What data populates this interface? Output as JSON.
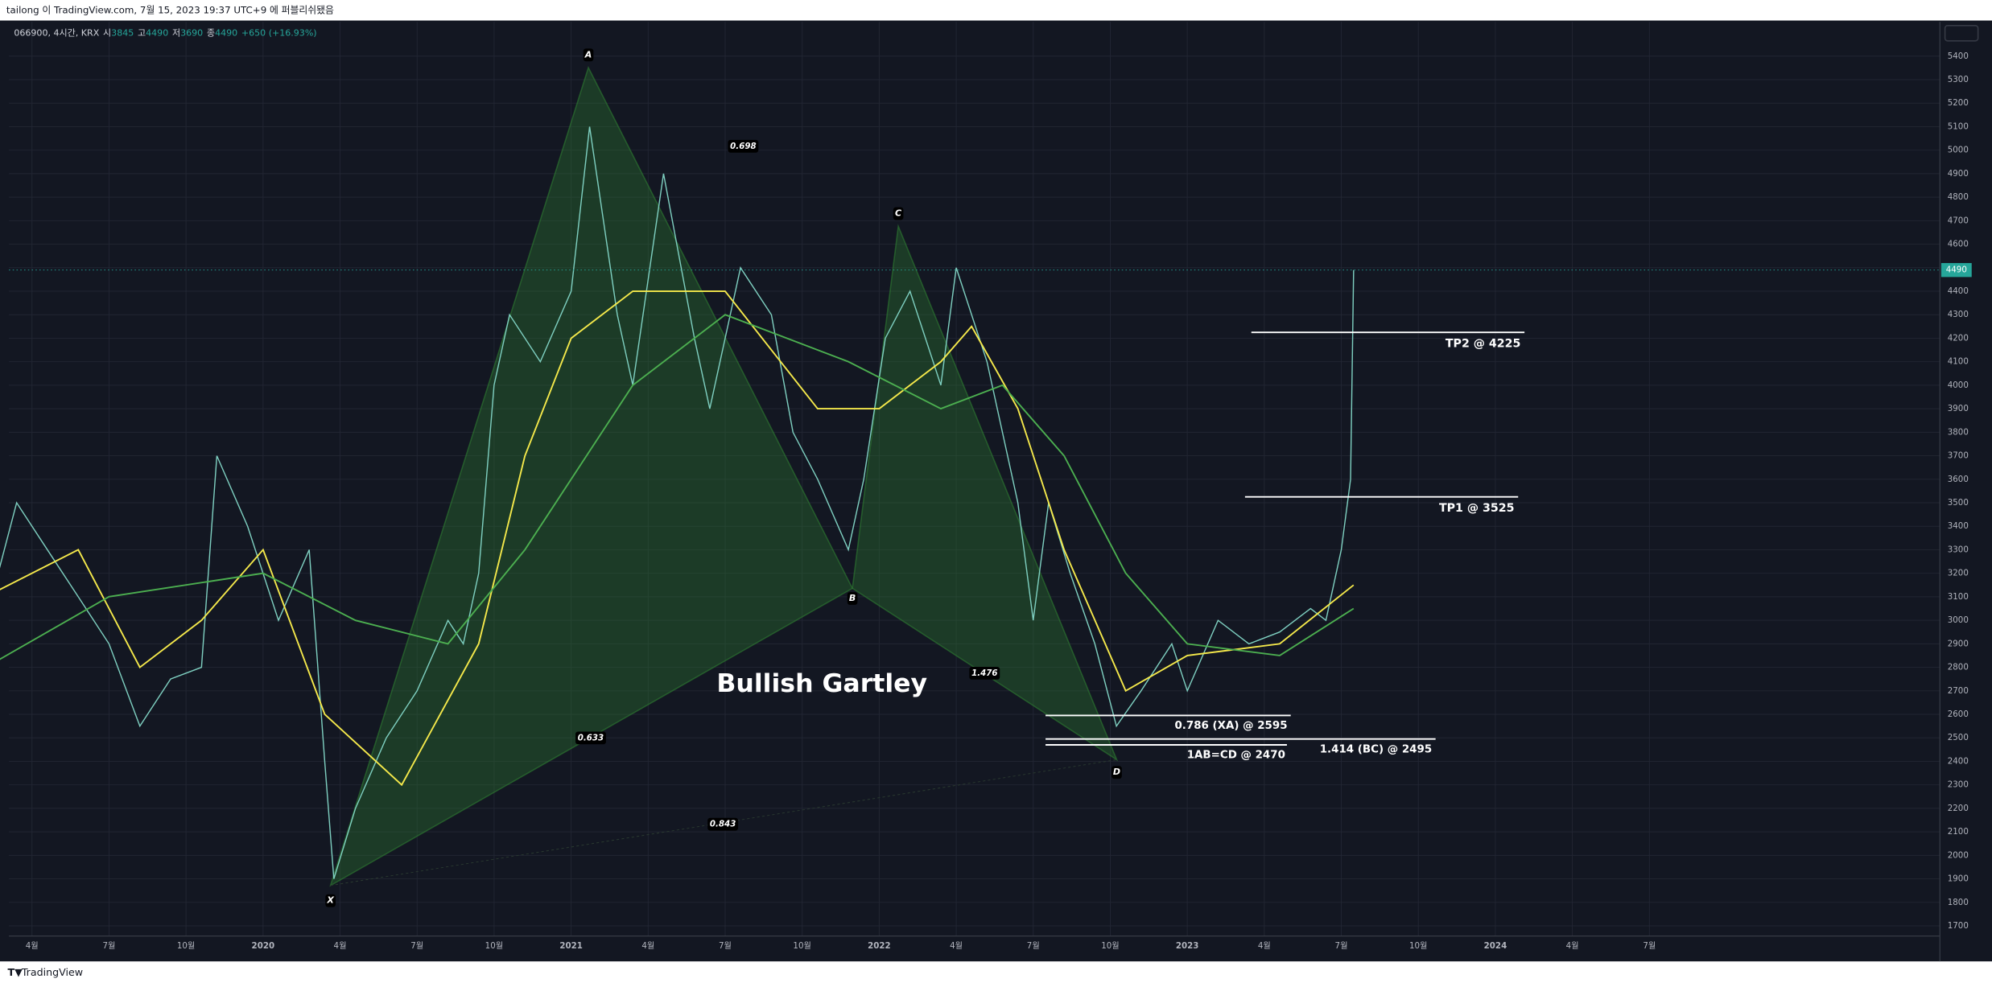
{
  "header": "tailong 이 TradingView.com, 7월 15, 2023 19:37 UTC+9 에 퍼블리쉬됐음",
  "footer": "TradingView",
  "chart_data": {
    "type": "harmonic",
    "legend": {
      "symbol": "066900, 4시간, KRX",
      "open_label": "시",
      "open": 3845,
      "high_label": "고",
      "high": 4490,
      "low_label": "저",
      "low": 3690,
      "close_label": "종",
      "close": 4490,
      "change": "+650 (+16.93%)"
    },
    "last_price": 4490,
    "xlim": [
      2019.175,
      2025.443
    ],
    "ylim": [
      1657,
      5546
    ],
    "xticks": [
      {
        "value": 2019.25,
        "label": "4월"
      },
      {
        "value": 2019.5,
        "label": "7월"
      },
      {
        "value": 2019.75,
        "label": "10월"
      },
      2020,
      {
        "value": 2020.25,
        "label": "4월"
      },
      {
        "value": 2020.5,
        "label": "7월"
      },
      {
        "value": 2020.75,
        "label": "10월"
      },
      2021,
      {
        "value": 2021.25,
        "label": "4월"
      },
      {
        "value": 2021.5,
        "label": "7월"
      },
      {
        "value": 2021.75,
        "label": "10월"
      },
      2022,
      {
        "value": 2022.25,
        "label": "4월"
      },
      {
        "value": 2022.5,
        "label": "7월"
      },
      {
        "value": 2022.75,
        "label": "10월"
      },
      2023,
      {
        "value": 2023.25,
        "label": "4월"
      },
      {
        "value": 2023.5,
        "label": "7월"
      },
      {
        "value": 2023.75,
        "label": "10월"
      },
      2024,
      {
        "value": 2024.25,
        "label": "4월"
      },
      {
        "value": 2024.5,
        "label": "7월"
      }
    ],
    "yticks": [
      1700,
      1800,
      1900,
      2000,
      2100,
      2200,
      2300,
      2400,
      2500,
      2600,
      2700,
      2800,
      2900,
      3000,
      3100,
      3200,
      3300,
      3400,
      3500,
      3600,
      3700,
      3800,
      3900,
      4000,
      4100,
      4200,
      4300,
      4400,
      4500,
      4600,
      4700,
      4800,
      4900,
      5000,
      5100,
      5200,
      5300,
      5400
    ],
    "grid": true,
    "series": [
      {
        "color": "#7ecfc0",
        "x": [
          2019.1,
          2019.2,
          2019.3,
          2019.4,
          2019.5,
          2019.6,
          2019.7,
          2019.8,
          2019.85,
          2019.95,
          2020.05,
          2020.15,
          2020.2,
          2020.23,
          2020.3,
          2020.4,
          2020.5,
          2020.6,
          2020.65,
          2020.7,
          2020.75,
          2020.8,
          2020.9,
          2021.0,
          2021.06,
          2021.15,
          2021.2,
          2021.3,
          2021.4,
          2021.45,
          2021.55,
          2021.65,
          2021.72,
          2021.8,
          2021.9,
          2021.95,
          2022.02,
          2022.1,
          2022.2,
          2022.25,
          2022.35,
          2022.45,
          2022.5,
          2022.55,
          2022.62,
          2022.7,
          2022.77,
          2022.85,
          2022.95,
          2023.0,
          2023.1,
          2023.2,
          2023.3,
          2023.4,
          2023.45,
          2023.5,
          2023.53,
          2023.54
        ],
        "values": [
          3000,
          3500,
          3300,
          3100,
          2900,
          2550,
          2750,
          2800,
          3700,
          3400,
          3000,
          3300,
          2400,
          1900,
          2200,
          2500,
          2700,
          3000,
          2900,
          3200,
          4000,
          4300,
          4100,
          4400,
          5100,
          4300,
          4000,
          4900,
          4200,
          3900,
          4500,
          4300,
          3800,
          3600,
          3300,
          3600,
          4200,
          4400,
          4000,
          4500,
          4100,
          3500,
          3000,
          3500,
          3200,
          2900,
          2550,
          2700,
          2900,
          2700,
          3000,
          2900,
          2950,
          3050,
          3000,
          3300,
          3600,
          4490
        ]
      },
      {
        "color": "#f5e94b",
        "x": [
          2019.1,
          2019.4,
          2019.6,
          2019.8,
          2020.0,
          2020.2,
          2020.45,
          2020.7,
          2020.85,
          2021.0,
          2021.2,
          2021.5,
          2021.8,
          2022.0,
          2022.2,
          2022.3,
          2022.45,
          2022.6,
          2022.8,
          2023.0,
          2023.3,
          2023.54
        ],
        "values": [
          3100,
          3300,
          2800,
          3000,
          3300,
          2600,
          2300,
          2900,
          3700,
          4200,
          4400,
          4400,
          3900,
          3900,
          4100,
          4250,
          3900,
          3300,
          2700,
          2850,
          2900,
          3150
        ]
      },
      {
        "color": "#4caf50",
        "x": [
          2019.1,
          2019.5,
          2020.0,
          2020.3,
          2020.6,
          2020.85,
          2021.2,
          2021.5,
          2021.9,
          2022.2,
          2022.4,
          2022.6,
          2022.8,
          2023.0,
          2023.3,
          2023.54
        ],
        "values": [
          2800,
          3100,
          3200,
          3000,
          2900,
          3300,
          4000,
          4300,
          4100,
          3900,
          4000,
          3700,
          3200,
          2900,
          2850,
          3050
        ]
      }
    ],
    "pattern": {
      "name": "Bullish Gartley",
      "labels": [
        "X",
        "A",
        "B",
        "C",
        "D"
      ],
      "x": [
        2020.219,
        2021.056,
        2021.913,
        2022.062,
        2022.771
      ],
      "values": [
        1872,
        5351,
        3136,
        4676,
        2407
      ],
      "color": "#2e7d32"
    },
    "ratios": [
      0.698,
      0.633,
      1.476,
      0.843
    ],
    "price_lines": [
      {
        "label": "TP2 @ 4225",
        "value": 4225
      },
      {
        "label": "TP1 @ 3525",
        "value": 3525
      },
      {
        "label": "0.786 (XA) @ 2595",
        "value": 2595
      },
      {
        "label": "1.414 (BC) @ 2495",
        "value": 2495
      },
      {
        "label": "1AB=CD @ 2470",
        "value": 2470
      }
    ]
  }
}
